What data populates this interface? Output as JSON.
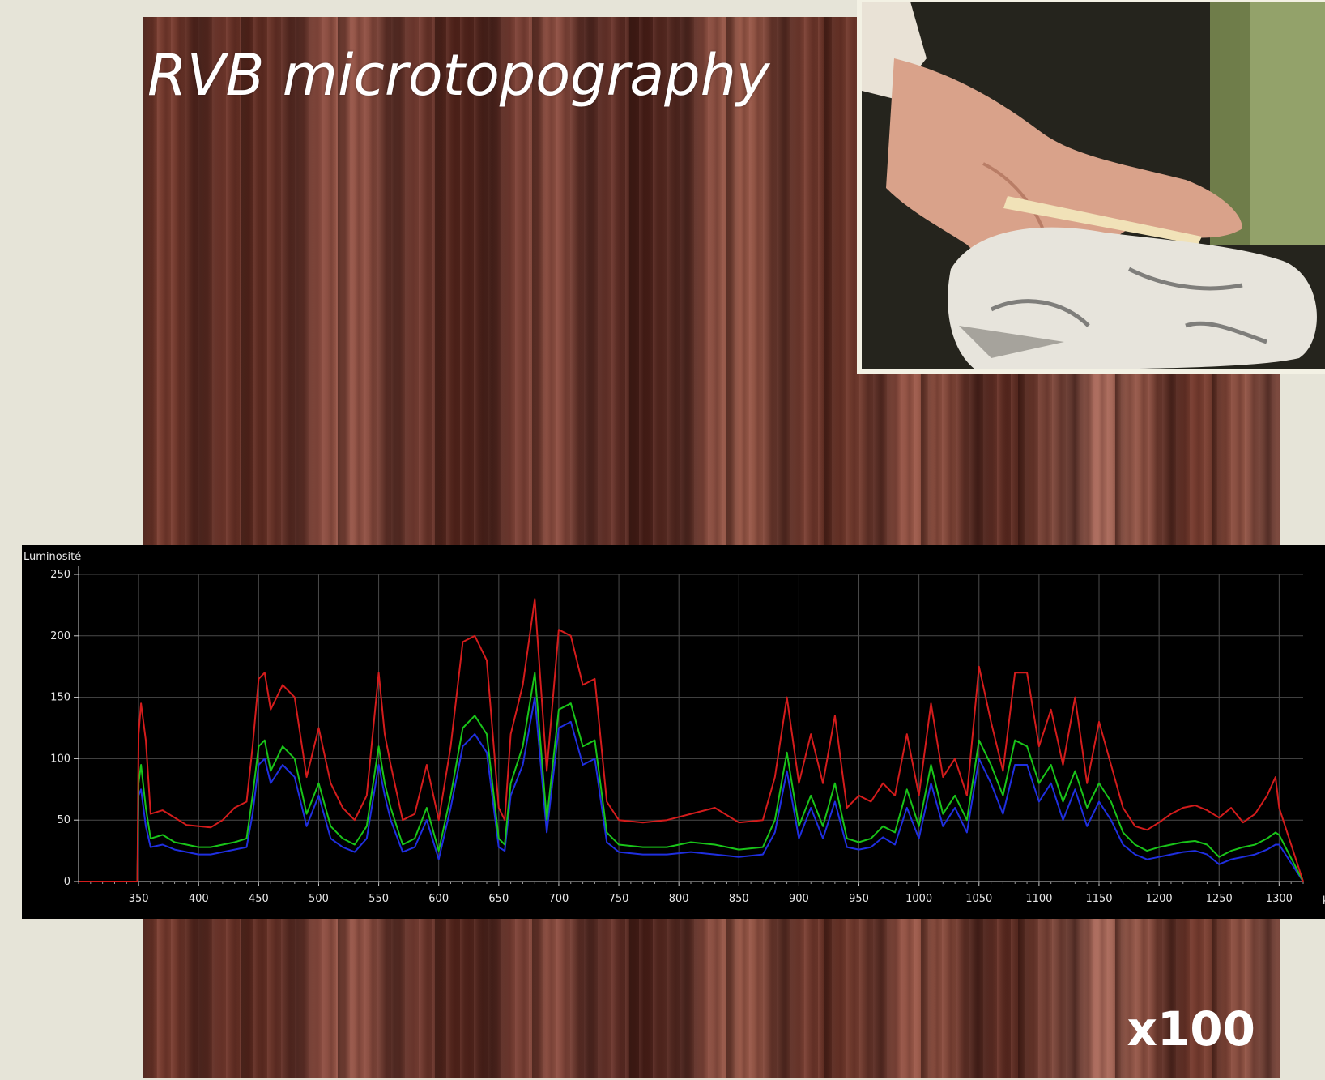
{
  "title": "RVB microtopography",
  "magnification": "x100",
  "photo": {
    "name": "hand-processing-hide-photo"
  },
  "chart_data": {
    "type": "line",
    "ylabel": "Luminosité",
    "xlabel": "µm",
    "ylim": [
      0,
      250
    ],
    "xlim": [
      300,
      1320
    ],
    "x_ticks": [
      350,
      400,
      450,
      500,
      550,
      600,
      650,
      700,
      750,
      800,
      850,
      900,
      950,
      1000,
      1050,
      1100,
      1150,
      1200,
      1250,
      1300
    ],
    "y_ticks": [
      0,
      50,
      100,
      150,
      200,
      250
    ],
    "grid": true,
    "colors": {
      "red": "#d41c1c",
      "green": "#19c419",
      "blue": "#1f2fe0"
    },
    "x": [
      300,
      349,
      350,
      352,
      356,
      360,
      370,
      380,
      390,
      400,
      410,
      420,
      430,
      440,
      445,
      450,
      455,
      460,
      470,
      480,
      490,
      500,
      510,
      520,
      530,
      540,
      550,
      555,
      560,
      570,
      580,
      590,
      600,
      610,
      620,
      630,
      640,
      650,
      655,
      660,
      670,
      680,
      690,
      700,
      710,
      720,
      730,
      740,
      750,
      770,
      790,
      810,
      830,
      850,
      870,
      880,
      890,
      900,
      910,
      920,
      930,
      940,
      950,
      960,
      970,
      980,
      990,
      1000,
      1010,
      1020,
      1030,
      1040,
      1050,
      1060,
      1070,
      1080,
      1090,
      1100,
      1110,
      1120,
      1130,
      1140,
      1150,
      1160,
      1170,
      1180,
      1190,
      1200,
      1210,
      1220,
      1230,
      1240,
      1250,
      1260,
      1270,
      1280,
      1290,
      1297,
      1300,
      1320
    ],
    "series": [
      {
        "name": "",
        "color_key": "red",
        "values": [
          0,
          0,
          120,
          145,
          115,
          55,
          58,
          52,
          46,
          45,
          44,
          50,
          60,
          65,
          110,
          165,
          170,
          140,
          160,
          150,
          85,
          125,
          80,
          60,
          50,
          70,
          170,
          120,
          95,
          50,
          55,
          95,
          50,
          110,
          195,
          200,
          180,
          60,
          50,
          120,
          160,
          230,
          90,
          205,
          200,
          160,
          165,
          65,
          50,
          48,
          50,
          55,
          60,
          48,
          50,
          85,
          150,
          80,
          120,
          80,
          135,
          60,
          70,
          65,
          80,
          70,
          120,
          70,
          145,
          85,
          100,
          70,
          175,
          130,
          90,
          170,
          170,
          110,
          140,
          95,
          150,
          80,
          130,
          95,
          60,
          45,
          42,
          48,
          55,
          60,
          62,
          58,
          52,
          60,
          48,
          55,
          70,
          85,
          60,
          0
        ]
      },
      {
        "name": "",
        "color_key": "green",
        "values": [
          0,
          0,
          80,
          95,
          60,
          35,
          38,
          32,
          30,
          28,
          28,
          30,
          32,
          35,
          70,
          110,
          115,
          90,
          110,
          100,
          55,
          80,
          45,
          35,
          30,
          45,
          110,
          80,
          60,
          30,
          35,
          60,
          25,
          70,
          125,
          135,
          120,
          35,
          30,
          80,
          110,
          170,
          50,
          140,
          145,
          110,
          115,
          40,
          30,
          28,
          28,
          32,
          30,
          26,
          28,
          50,
          105,
          45,
          70,
          45,
          80,
          35,
          32,
          35,
          45,
          40,
          75,
          45,
          95,
          55,
          70,
          50,
          115,
          95,
          70,
          115,
          110,
          80,
          95,
          65,
          90,
          60,
          80,
          65,
          40,
          30,
          25,
          28,
          30,
          32,
          33,
          30,
          20,
          25,
          28,
          30,
          35,
          40,
          38,
          0
        ]
      },
      {
        "name": "",
        "color_key": "blue",
        "values": [
          0,
          0,
          70,
          75,
          45,
          28,
          30,
          26,
          24,
          22,
          22,
          24,
          26,
          28,
          55,
          95,
          100,
          80,
          95,
          85,
          45,
          70,
          35,
          28,
          24,
          35,
          95,
          70,
          50,
          24,
          28,
          50,
          18,
          60,
          110,
          120,
          105,
          28,
          25,
          70,
          95,
          150,
          40,
          125,
          130,
          95,
          100,
          32,
          24,
          22,
          22,
          24,
          22,
          20,
          22,
          40,
          90,
          35,
          60,
          35,
          65,
          28,
          26,
          28,
          36,
          30,
          60,
          35,
          80,
          45,
          60,
          40,
          100,
          80,
          55,
          95,
          95,
          65,
          80,
          50,
          75,
          45,
          65,
          50,
          30,
          22,
          18,
          20,
          22,
          24,
          25,
          22,
          14,
          18,
          20,
          22,
          26,
          30,
          30,
          0
        ]
      }
    ]
  }
}
